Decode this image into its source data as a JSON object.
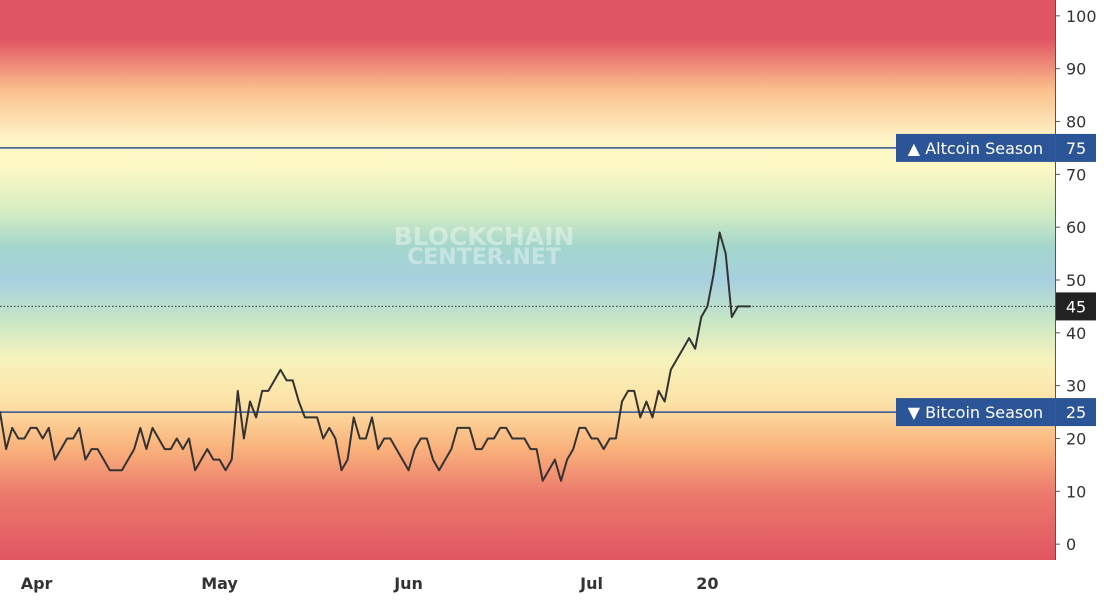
{
  "watermark": {
    "line1": "BLOCKCHAIN",
    "line2": "CENTER.NET"
  },
  "chart_data": {
    "type": "line",
    "ylim": [
      -3,
      103
    ],
    "y_ticks": [
      0,
      10,
      20,
      30,
      40,
      50,
      60,
      70,
      80,
      90,
      100
    ],
    "x_ticks": [
      {
        "label": "Apr",
        "day": 0
      },
      {
        "label": "May",
        "day": 30
      },
      {
        "label": "Jun",
        "day": 61
      },
      {
        "label": "Jul",
        "day": 91
      },
      {
        "label": "20",
        "day": 110
      }
    ],
    "x_range_days": [
      -6,
      167
    ],
    "reference_lines": [
      {
        "name": "altcoin-season",
        "value": 75,
        "label": "▲ Altcoin Season",
        "color": "#2c5597"
      },
      {
        "name": "bitcoin-season",
        "value": 25,
        "label": "▼ Bitcoin Season",
        "color": "#2c5597"
      }
    ],
    "current_value": {
      "value": 45,
      "label": "45"
    },
    "series": [
      {
        "color": "#333333",
        "points": [
          [
            -6,
            25
          ],
          [
            -5,
            18
          ],
          [
            -4,
            22
          ],
          [
            -3,
            20
          ],
          [
            -2,
            20
          ],
          [
            -1,
            22
          ],
          [
            0,
            22
          ],
          [
            1,
            20
          ],
          [
            2,
            22
          ],
          [
            3,
            16
          ],
          [
            4,
            18
          ],
          [
            5,
            20
          ],
          [
            6,
            20
          ],
          [
            7,
            22
          ],
          [
            8,
            16
          ],
          [
            9,
            18
          ],
          [
            10,
            18
          ],
          [
            11,
            16
          ],
          [
            12,
            14
          ],
          [
            13,
            14
          ],
          [
            14,
            14
          ],
          [
            15,
            16
          ],
          [
            16,
            18
          ],
          [
            17,
            22
          ],
          [
            18,
            18
          ],
          [
            19,
            22
          ],
          [
            20,
            20
          ],
          [
            21,
            18
          ],
          [
            22,
            18
          ],
          [
            23,
            20
          ],
          [
            24,
            18
          ],
          [
            25,
            20
          ],
          [
            26,
            14
          ],
          [
            27,
            16
          ],
          [
            28,
            18
          ],
          [
            29,
            16
          ],
          [
            30,
            16
          ],
          [
            31,
            14
          ],
          [
            32,
            16
          ],
          [
            33,
            29
          ],
          [
            34,
            20
          ],
          [
            35,
            27
          ],
          [
            36,
            24
          ],
          [
            37,
            29
          ],
          [
            38,
            29
          ],
          [
            39,
            31
          ],
          [
            40,
            33
          ],
          [
            41,
            31
          ],
          [
            42,
            31
          ],
          [
            43,
            27
          ],
          [
            44,
            24
          ],
          [
            45,
            24
          ],
          [
            46,
            24
          ],
          [
            47,
            20
          ],
          [
            48,
            22
          ],
          [
            49,
            20
          ],
          [
            50,
            14
          ],
          [
            51,
            16
          ],
          [
            52,
            24
          ],
          [
            53,
            20
          ],
          [
            54,
            20
          ],
          [
            55,
            24
          ],
          [
            56,
            18
          ],
          [
            57,
            20
          ],
          [
            58,
            20
          ],
          [
            59,
            18
          ],
          [
            60,
            16
          ],
          [
            61,
            14
          ],
          [
            62,
            18
          ],
          [
            63,
            20
          ],
          [
            64,
            20
          ],
          [
            65,
            16
          ],
          [
            66,
            14
          ],
          [
            67,
            16
          ],
          [
            68,
            18
          ],
          [
            69,
            22
          ],
          [
            70,
            22
          ],
          [
            71,
            22
          ],
          [
            72,
            18
          ],
          [
            73,
            18
          ],
          [
            74,
            20
          ],
          [
            75,
            20
          ],
          [
            76,
            22
          ],
          [
            77,
            22
          ],
          [
            78,
            20
          ],
          [
            79,
            20
          ],
          [
            80,
            20
          ],
          [
            81,
            18
          ],
          [
            82,
            18
          ],
          [
            83,
            12
          ],
          [
            84,
            14
          ],
          [
            85,
            16
          ],
          [
            86,
            12
          ],
          [
            87,
            16
          ],
          [
            88,
            18
          ],
          [
            89,
            22
          ],
          [
            90,
            22
          ],
          [
            91,
            20
          ],
          [
            92,
            20
          ],
          [
            93,
            18
          ],
          [
            94,
            20
          ],
          [
            95,
            20
          ],
          [
            96,
            27
          ],
          [
            97,
            29
          ],
          [
            98,
            29
          ],
          [
            99,
            24
          ],
          [
            100,
            27
          ],
          [
            101,
            24
          ],
          [
            102,
            29
          ],
          [
            103,
            27
          ],
          [
            104,
            33
          ],
          [
            105,
            35
          ],
          [
            106,
            37
          ],
          [
            107,
            39
          ],
          [
            108,
            37
          ],
          [
            109,
            43
          ],
          [
            110,
            45
          ],
          [
            111,
            51
          ],
          [
            112,
            59
          ],
          [
            113,
            55
          ],
          [
            114,
            43
          ],
          [
            115,
            45
          ],
          [
            116,
            45
          ],
          [
            117,
            45
          ]
        ]
      }
    ]
  }
}
